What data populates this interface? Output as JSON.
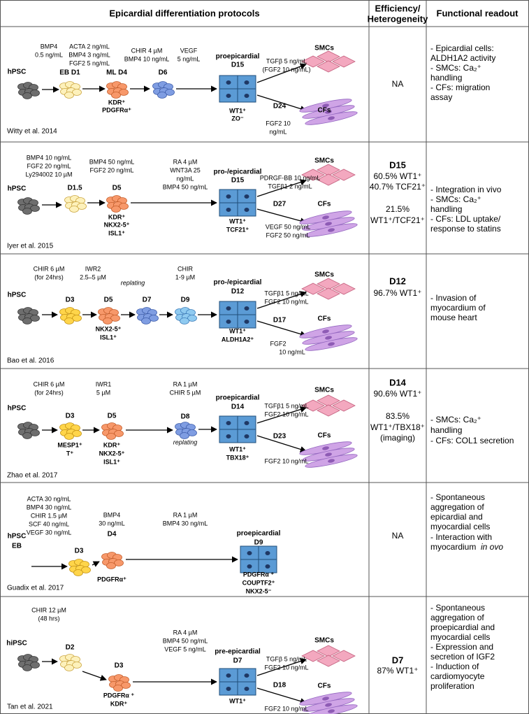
{
  "header": {
    "protocols": "Epicardial differentiation protocols",
    "efficiency": [
      "Efficiency/",
      "Heterogeneity"
    ],
    "readout": "Functional readout"
  },
  "rows": [
    {
      "conditions": [
        "BMP4",
        "0.5 ng/mL",
        "ACTA 2 ng/mL",
        "BMP4 3 ng/mL",
        "FGF2 5 ng/mL",
        "CHIR 4 µM",
        "BMP4 10 ng/mL",
        "VEGF",
        "5 ng/mL"
      ],
      "stages": [
        "hPSC",
        "EB D1",
        "ML D4",
        "D6",
        "proepicardial",
        "D15"
      ],
      "markers": [
        "KDR⁺",
        "PDGFRα⁺",
        "WT1⁺",
        "ZO⁻"
      ],
      "branches": [
        "SMCs",
        "TGFβ 5 ng/mL",
        "(FGF2 10 ng/mL)",
        "D24",
        "CFs",
        "FGF2 10",
        "ng/mL"
      ],
      "citation": "Witty et al. 2014",
      "efficiency": [
        "NA"
      ],
      "readout": [
        "- Epicardial cells:",
        "ALDH1A2 activity",
        "- SMCs: Ca₂⁺",
        "handling",
        "- CFs: migration",
        "assay"
      ]
    },
    {
      "conditions": [
        "BMP4 10 ng/mL",
        "FGF2 20 ng/mL",
        "Ly294002 10 µM",
        "BMP4 50 ng/mL",
        "FGF2 20 ng/mL",
        "RA 4 µM",
        "WNT3A 25",
        "ng/mL",
        "BMP4 50 ng/mL"
      ],
      "stages": [
        "hPSC",
        "D1.5",
        "D5",
        "pro-/epicardial",
        "D15"
      ],
      "markers": [
        "KDR⁺",
        "NKX2-5⁺",
        "ISL1⁺",
        "WT1⁺",
        "TCF21⁺"
      ],
      "branches": [
        "SMCs",
        "PDRGF-BB 10 ng/mL",
        "TGFβ1 2 ng/mL",
        "D27",
        "CFs",
        "VEGF 50 ng/mL",
        "FGF2 50 ng/mL"
      ],
      "citation": "Iyer et al. 2015",
      "efficiency": [
        "D15",
        "60.5% WT1⁺",
        "40.7% TCF21⁺",
        "21.5%",
        "WT1⁺/TCF21⁺"
      ],
      "readout": [
        "- Integration in vivo",
        "- SMCs: Ca₂⁺",
        "handling",
        "- CFs: LDL uptake/",
        "response to statins"
      ]
    },
    {
      "conditions": [
        "CHIR 6 µM",
        "(for 24hrs)",
        "IWR2",
        "2.5–5 µM",
        "replating",
        "CHIR",
        "1-9 µM"
      ],
      "stages": [
        "hPSC",
        "D3",
        "D5",
        "D7",
        "D9",
        "pro-/epicardial",
        "D12"
      ],
      "markers": [
        "NKX2-5⁺",
        "ISL1⁺",
        "WT1⁺",
        "ALDH1A2⁺"
      ],
      "branches": [
        "SMCs",
        "TGFβ1 5 ng/mL",
        "FGF2 10 ng/mL",
        "D17",
        "CFs",
        "FGF2",
        "10 ng/mL"
      ],
      "citation": "Bao et al. 2016",
      "efficiency": [
        "D12",
        "96.7% WT1⁺"
      ],
      "readout": [
        "- Invasion of",
        "myocardium of",
        "mouse heart"
      ]
    },
    {
      "conditions": [
        "CHIR 6 µM",
        "(for 24hrs)",
        "IWR1",
        "5 µM",
        "RA 1 µM",
        "CHIR 5 µM",
        "replating"
      ],
      "stages": [
        "hPSC",
        "D3",
        "D5",
        "D8",
        "proepicardial",
        "D14"
      ],
      "markers": [
        "MESP1⁺",
        "T⁺",
        "KDR⁺",
        "NKX2-5⁺",
        "ISL1⁺",
        "WT1⁺",
        "TBX18⁺"
      ],
      "branches": [
        "SMCs",
        "TGFβ1 5 ng/mL",
        "FGF2 10 ng/mL",
        "D23",
        "CFs",
        "FGF2 10 ng/mL"
      ],
      "citation": "Zhao et al. 2017",
      "efficiency": [
        "D14",
        "90.6% WT1⁺",
        "83.5%",
        "WT1⁺/TBX18⁺",
        "(imaging)"
      ],
      "readout": [
        "- SMCs: Ca₂⁺",
        "handling",
        "- CFs: COL1 secretion"
      ]
    },
    {
      "conditions": [
        "ACTA 30 ng/mL",
        "BMP4 30 ng/mL",
        "CHIR 1.5 µM",
        "SCF 40 ng/mL",
        "VEGF 30 ng/mL",
        "BMP4",
        "30 ng/mL",
        "RA 1 µM",
        "BMP4 30 ng/mL"
      ],
      "stages": [
        "hPSC",
        "EB",
        "D3",
        "D4",
        "proepicardial",
        "D9"
      ],
      "markers": [
        "PDGFRα⁺",
        "PDGFRα ⁺",
        "COUPTF2⁺",
        "NKX2-5⁻"
      ],
      "citation": "Guadix et al. 2017",
      "efficiency": [
        "NA"
      ],
      "readout": [
        "- Spontaneous",
        "aggregation of",
        "epicardial and",
        "myocardial cells",
        "- Interaction with",
        "myocardium",
        "in ovo"
      ]
    },
    {
      "conditions": [
        "CHIR 12 µM",
        "(48 hrs)",
        "RA 4 µM",
        "BMP4 50 ng/mL",
        "VEGF 5 ng/mL"
      ],
      "stages": [
        "hiPSC",
        "D2",
        "D3",
        "pre-epicardial",
        "D7"
      ],
      "markers": [
        "PDGFRα ⁺",
        "KDR⁺",
        "WT1⁺"
      ],
      "branches": [
        "SMCs",
        "TGFβ 5 ng/mL",
        "FGF2 10 ng/mL",
        "D18",
        "CFs",
        "FGF2 10 ng/mL"
      ],
      "citation": "Tan et al. 2021",
      "efficiency": [
        "D7",
        "87% WT1⁺"
      ],
      "readout": [
        "- Spontaneous",
        "aggregation of",
        "proepicardial and",
        "myocardial cells",
        "- Expression and",
        "secretion of IGF2",
        "- Induction of",
        "cardiomyocyte",
        "proliferation"
      ]
    }
  ]
}
